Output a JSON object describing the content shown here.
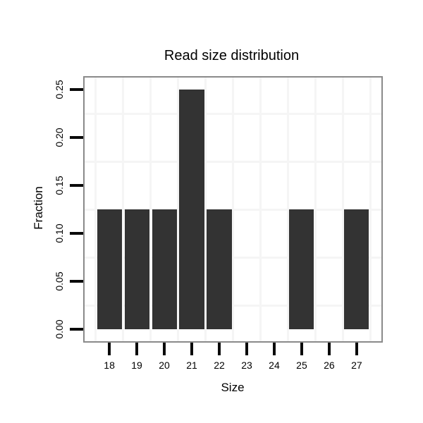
{
  "figure": {
    "title": "Read size distribution",
    "xlabel": "Size",
    "ylabel": "Fraction"
  },
  "chart_data": {
    "type": "bar",
    "title": "Read size distribution",
    "xlabel": "Size",
    "ylabel": "Fraction",
    "categories": [
      18,
      19,
      20,
      21,
      22,
      23,
      24,
      25,
      26,
      27
    ],
    "values": [
      0.125,
      0.125,
      0.125,
      0.25,
      0.125,
      0,
      0,
      0.125,
      0,
      0.125
    ],
    "x_tick_labels": [
      "18",
      "19",
      "20",
      "21",
      "22",
      "23",
      "24",
      "25",
      "26",
      "27"
    ],
    "y_tick_labels": [
      "0.00",
      "0.05",
      "0.10",
      "0.15",
      "0.20",
      "0.25"
    ],
    "y_tick_values": [
      0,
      0.05,
      0.1,
      0.15,
      0.2,
      0.25
    ],
    "xlim": [
      17.1,
      27.9
    ],
    "ylim": [
      -0.0125,
      0.2625
    ],
    "bar_width_units": 0.9,
    "grid": "minor-only",
    "minor_grid_x": [
      17.5,
      18.5,
      19.5,
      20.5,
      21.5,
      22.5,
      23.5,
      24.5,
      25.5,
      26.5,
      27.5
    ],
    "minor_grid_y": [
      0.025,
      0.075,
      0.125,
      0.175,
      0.225
    ],
    "legend": "none",
    "colors": {
      "bar": "#333333",
      "grid": "#f5f5f5",
      "panel_border": "#8a8a8a",
      "tick": "#0a0a0a",
      "text": "#000000",
      "background": "#ffffff"
    }
  }
}
